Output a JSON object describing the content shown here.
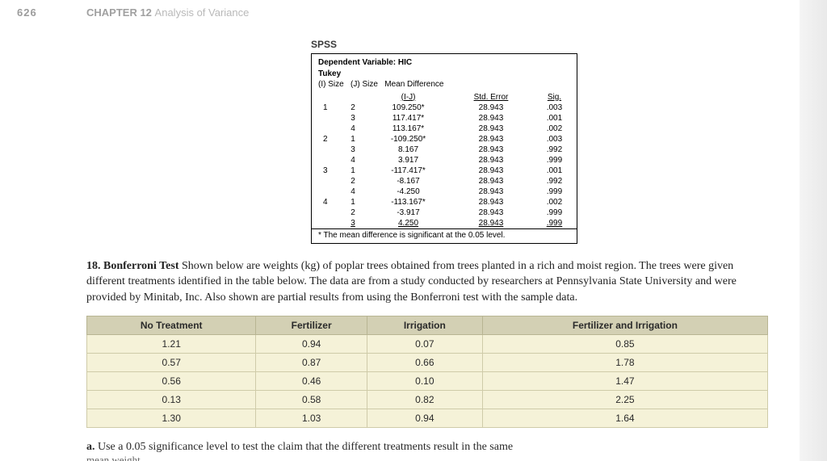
{
  "header": {
    "page_number": "626",
    "chapter_label": "CHAPTER 12",
    "chapter_name": "Analysis of Variance"
  },
  "spss": {
    "label": "SPSS",
    "dep_var_label": "Dependent Variable:",
    "dep_var_value": "HIC",
    "method": "Tukey",
    "col_i": "(I) Size",
    "col_j": "(J) Size",
    "col_meandiff": "Mean Difference",
    "col_ij": "(I-J)",
    "col_stderr": "Std. Error",
    "col_sig": "Sig.",
    "rows": [
      {
        "i": "1",
        "j": "2",
        "md": "109.250*",
        "se": "28.943",
        "sig": ".003"
      },
      {
        "i": "",
        "j": "3",
        "md": "117.417*",
        "se": "28.943",
        "sig": ".001"
      },
      {
        "i": "",
        "j": "4",
        "md": "113.167*",
        "se": "28.943",
        "sig": ".002"
      },
      {
        "i": "2",
        "j": "1",
        "md": "-109.250*",
        "se": "28.943",
        "sig": ".003"
      },
      {
        "i": "",
        "j": "3",
        "md": "8.167",
        "se": "28.943",
        "sig": ".992"
      },
      {
        "i": "",
        "j": "4",
        "md": "3.917",
        "se": "28.943",
        "sig": ".999"
      },
      {
        "i": "3",
        "j": "1",
        "md": "-117.417*",
        "se": "28.943",
        "sig": ".001"
      },
      {
        "i": "",
        "j": "2",
        "md": "-8.167",
        "se": "28.943",
        "sig": ".992"
      },
      {
        "i": "",
        "j": "4",
        "md": "-4.250",
        "se": "28.943",
        "sig": ".999"
      },
      {
        "i": "4",
        "j": "1",
        "md": "-113.167*",
        "se": "28.943",
        "sig": ".002"
      },
      {
        "i": "",
        "j": "2",
        "md": "-3.917",
        "se": "28.943",
        "sig": ".999"
      },
      {
        "i": "",
        "j": "3",
        "md": "4.250",
        "se": "28.943",
        "sig": ".999"
      }
    ],
    "footnote": "* The mean difference is significant at the 0.05 level."
  },
  "problem": {
    "number": "18.",
    "title": "Bonferroni Test",
    "body": "Shown below are weights (kg) of poplar trees obtained from trees planted in a rich and moist region. The trees were given different treatments identified in the table below. The data are from a study conducted by researchers at Pennsylvania State University and were provided by Minitab, Inc. Also shown are partial results from using the Bonferroni test with the sample data."
  },
  "data_table": {
    "columns": [
      "No Treatment",
      "Fertilizer",
      "Irrigation",
      "Fertilizer and Irrigation"
    ],
    "rows": [
      [
        "1.21",
        "0.94",
        "0.07",
        "0.85"
      ],
      [
        "0.57",
        "0.87",
        "0.66",
        "1.78"
      ],
      [
        "0.56",
        "0.46",
        "0.10",
        "1.47"
      ],
      [
        "0.13",
        "0.58",
        "0.82",
        "2.25"
      ],
      [
        "1.30",
        "1.03",
        "0.94",
        "1.64"
      ]
    ],
    "header_bg": "#d3d0b4",
    "cell_bg": "#f5f2d8",
    "border_color": "#cfcba9"
  },
  "sub_q": {
    "letter": "a.",
    "text": "Use a 0.05 significance level to test the claim that the different treatments result in the same"
  },
  "cutoff_text": "mean weight"
}
